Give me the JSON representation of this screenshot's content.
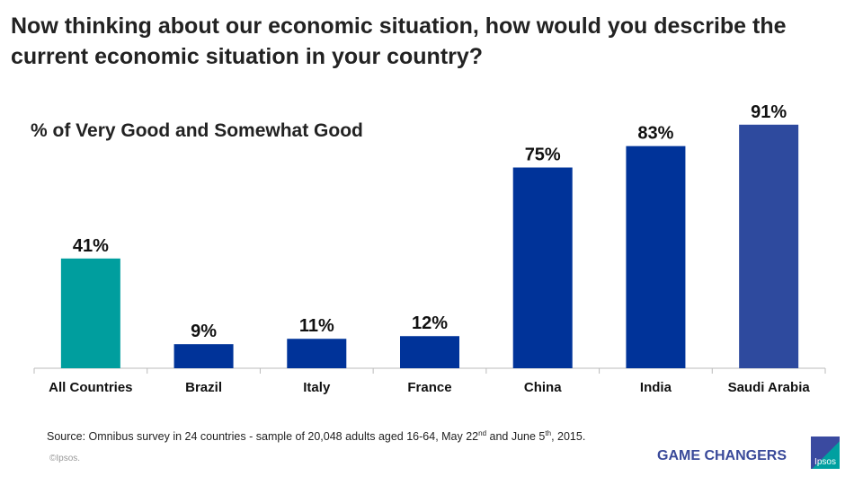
{
  "title": "Now thinking about our economic situation, how would you describe the current economic situation in your country?",
  "chart_data": {
    "type": "bar",
    "title": "Now thinking about our economic situation, how would you describe the current economic situation in your country?",
    "subtitle": "% of Very Good and Somewhat Good",
    "categories": [
      "All Countries",
      "Brazil",
      "Italy",
      "France",
      "China",
      "India",
      "Saudi Arabia"
    ],
    "values": [
      41,
      9,
      11,
      12,
      75,
      83,
      91
    ],
    "data_labels": [
      "41%",
      "9%",
      "11%",
      "12%",
      "75%",
      "83%",
      "91%"
    ],
    "colors": [
      "#009e9e",
      "#003399",
      "#003399",
      "#003399",
      "#003399",
      "#003399",
      "#2e4a9e"
    ],
    "ylim": [
      0,
      100
    ],
    "grid": false
  },
  "footer": {
    "source_main": "Source: Omnibus survey in 24 countries - sample of 20,048 adults aged 16-64,  May 22",
    "sup1": "nd",
    "mid": " and June 5",
    "sup2": "th",
    "end": ", 2015.",
    "copyright": "©Ipsos.",
    "tagline": "GAME CHANGERS",
    "logo_text": "Ipsos"
  }
}
